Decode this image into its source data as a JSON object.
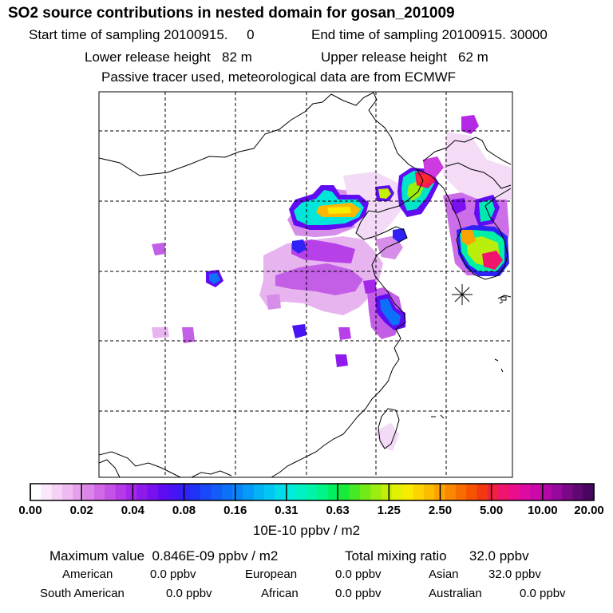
{
  "title": "SO2 source contributions in nested domain for gosan_201009",
  "sampling": {
    "start_label": "Start time of sampling",
    "start_value": "20100915.     0",
    "end_label": "End time of sampling",
    "end_value": "20100915. 30000"
  },
  "release": {
    "lower_label": "Lower release height",
    "lower_value": "82 m",
    "upper_label": "Upper release height",
    "upper_value": "62 m"
  },
  "note": "Passive tracer used, meteorological data are from ECMWF",
  "colorbar": {
    "labels": [
      "0.00",
      "0.02",
      "0.04",
      "0.08",
      "0.16",
      "0.31",
      "0.63",
      "1.25",
      "2.50",
      "5.00",
      "10.00",
      "20.00"
    ],
    "unit": "10E-10 ppbv / m2",
    "colors": [
      "#ffffff",
      "#fbe8fb",
      "#f5d2f6",
      "#efbaf1",
      "#e6a0ec",
      "#dc84e8",
      "#d168e6",
      "#c452e6",
      "#b63ae8",
      "#a528ea",
      "#8f1aec",
      "#7a10ef",
      "#5f0cf2",
      "#4814f4",
      "#3022f6",
      "#2034f8",
      "#1848f8",
      "#125cf8",
      "#0c70f8",
      "#0886f8",
      "#049cf8",
      "#02b4f6",
      "#00c8f2",
      "#00dcea",
      "#00ecdc",
      "#00f2c4",
      "#00f4a6",
      "#00f488",
      "#00f060",
      "#18ec3a",
      "#46ea24",
      "#72ea18",
      "#9ced10",
      "#c2ee08",
      "#e2f002",
      "#f8ea00",
      "#fcd400",
      "#fcbc00",
      "#fca200",
      "#fa8800",
      "#f86c00",
      "#f65200",
      "#f43810",
      "#f22040",
      "#f0146c",
      "#ea0e8c",
      "#de0aa2",
      "#cc08aa",
      "#b408a8",
      "#98089c",
      "#7c0888",
      "#600872",
      "#460660"
    ]
  },
  "summary": {
    "max_label": "Maximum value",
    "max_value": "0.846E-09 ppbv / m2",
    "total_label": "Total mixing ratio",
    "total_value": "32.0 ppbv"
  },
  "regions": [
    {
      "name": "American",
      "value": "0.0 ppbv"
    },
    {
      "name": "European",
      "value": "0.0 ppbv"
    },
    {
      "name": "Asian",
      "value": "32.0 ppbv"
    },
    {
      "name": "South American",
      "value": "0.0 ppbv"
    },
    {
      "name": "African",
      "value": "0.0 ppbv"
    },
    {
      "name": "Australian",
      "value": "0.0 ppbv"
    }
  ]
}
